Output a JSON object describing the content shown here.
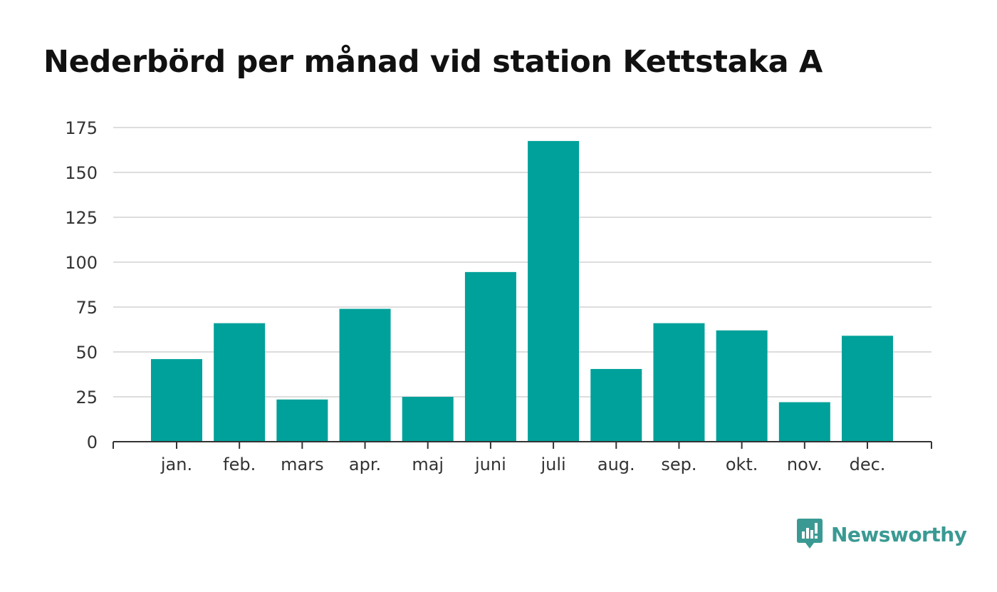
{
  "chart_data": {
    "type": "bar",
    "title": "Nederbörd per månad vid station Kettstaka A",
    "xlabel": "",
    "ylabel": "",
    "categories": [
      "jan.",
      "feb.",
      "mars",
      "apr.",
      "maj",
      "juni",
      "juli",
      "aug.",
      "sep.",
      "okt.",
      "nov.",
      "dec."
    ],
    "values": [
      46,
      66,
      23.5,
      74,
      25,
      94.5,
      167.5,
      40.5,
      66,
      62,
      22,
      59
    ],
    "ylim": [
      0,
      175
    ],
    "yticks": [
      0,
      25,
      50,
      75,
      100,
      125,
      150,
      175
    ],
    "grid": true,
    "legend": "none",
    "bar_color": "#00a19a"
  },
  "brand": {
    "name": "Newsworthy",
    "icon": "newsworthy-logo-icon",
    "color": "#3a9a93"
  }
}
